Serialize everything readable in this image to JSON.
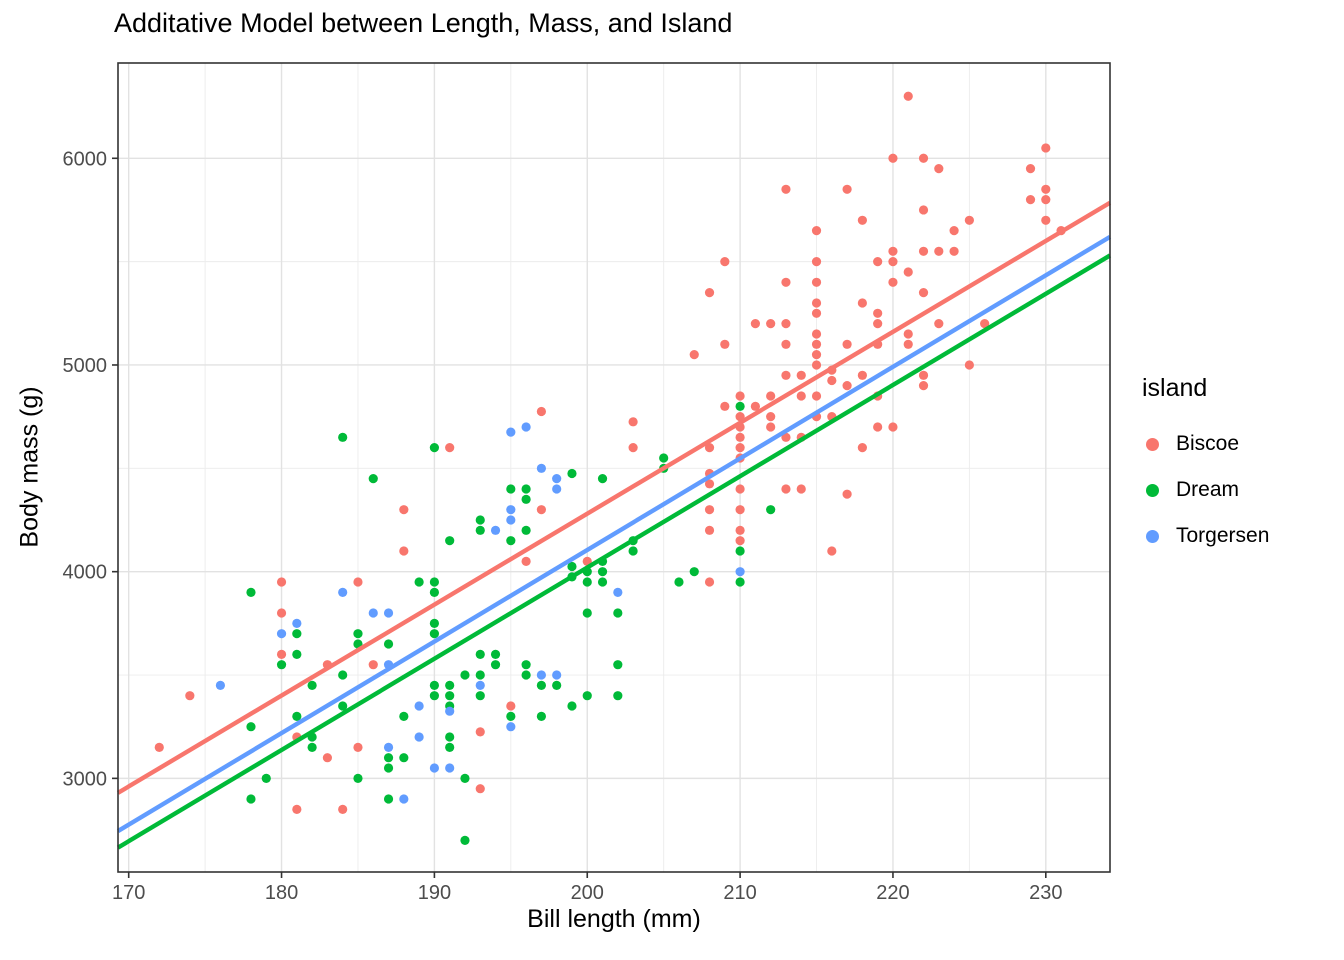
{
  "title": "Additative Model between Length, Mass, and Island",
  "legend": {
    "title": "island",
    "entries": [
      {
        "label": "Biscoe",
        "color": "#F8766D"
      },
      {
        "label": "Dream",
        "color": "#00BA38"
      },
      {
        "label": "Torgersen",
        "color": "#619CFF"
      }
    ]
  },
  "chart_data": {
    "type": "scatter",
    "title": "Additative Model between Length, Mass, and Island",
    "xlabel": "Bill length (mm)",
    "ylabel": "Body mass (g)",
    "xlim": [
      169.3,
      234.2
    ],
    "ylim": [
      2547,
      6461
    ],
    "x_ticks": [
      170,
      180,
      190,
      200,
      210,
      220,
      230
    ],
    "x_minor_ticks": [
      175,
      185,
      195,
      205,
      215,
      225
    ],
    "y_ticks": [
      3000,
      4000,
      5000,
      6000
    ],
    "y_minor_ticks": [
      3500,
      4500,
      5500
    ],
    "grid": "major+minor",
    "legend_title": "island",
    "legend_position": "right",
    "point_radius_px": 4.6,
    "colors": {
      "major_grid": "#E2E2E2",
      "minor_grid": "#ECECEC",
      "panel_border": "#333333",
      "tick": "#333333",
      "tick_label": "#4d4d4d"
    },
    "series": [
      {
        "name": "Biscoe",
        "color": "#F8766D",
        "points": [
          [
            172,
            3150
          ],
          [
            174,
            3400
          ],
          [
            180,
            3950
          ],
          [
            180,
            3800
          ],
          [
            180,
            3600
          ],
          [
            181,
            3200
          ],
          [
            181,
            2850
          ],
          [
            183,
            3550
          ],
          [
            183,
            3100
          ],
          [
            184,
            2850
          ],
          [
            185,
            3950
          ],
          [
            185,
            3150
          ],
          [
            186,
            3550
          ],
          [
            188,
            4300
          ],
          [
            188,
            4100
          ],
          [
            191,
            4600
          ],
          [
            193,
            3225
          ],
          [
            193,
            2950
          ],
          [
            195,
            3350
          ],
          [
            196,
            4050
          ],
          [
            197,
            4775
          ],
          [
            197,
            4300
          ],
          [
            200,
            4050
          ],
          [
            203,
            4725
          ],
          [
            203,
            4600
          ],
          [
            207,
            5050
          ],
          [
            208,
            5350
          ],
          [
            208,
            4600
          ],
          [
            208,
            4475
          ],
          [
            208,
            4425
          ],
          [
            208,
            4300
          ],
          [
            208,
            4200
          ],
          [
            208,
            3950
          ],
          [
            209,
            5500
          ],
          [
            209,
            5100
          ],
          [
            209,
            4800
          ],
          [
            210,
            4850
          ],
          [
            210,
            4750
          ],
          [
            210,
            4700
          ],
          [
            210,
            4650
          ],
          [
            210,
            4600
          ],
          [
            210,
            4550
          ],
          [
            210,
            4400
          ],
          [
            210,
            4300
          ],
          [
            210,
            4200
          ],
          [
            210,
            4150
          ],
          [
            211,
            5200
          ],
          [
            211,
            4800
          ],
          [
            212,
            5200
          ],
          [
            212,
            4850
          ],
          [
            212,
            4750
          ],
          [
            212,
            4700
          ],
          [
            213,
            5850
          ],
          [
            213,
            5400
          ],
          [
            213,
            5200
          ],
          [
            213,
            5100
          ],
          [
            213,
            4950
          ],
          [
            213,
            4650
          ],
          [
            213,
            4400
          ],
          [
            214,
            4950
          ],
          [
            214,
            4850
          ],
          [
            214,
            4650
          ],
          [
            214,
            4400
          ],
          [
            215,
            5650
          ],
          [
            215,
            5500
          ],
          [
            215,
            5400
          ],
          [
            215,
            5300
          ],
          [
            215,
            5250
          ],
          [
            215,
            5150
          ],
          [
            215,
            5100
          ],
          [
            215,
            5050
          ],
          [
            215,
            5000
          ],
          [
            215,
            4850
          ],
          [
            215,
            4750
          ],
          [
            216,
            4975
          ],
          [
            216,
            4925
          ],
          [
            216,
            4750
          ],
          [
            216,
            4100
          ],
          [
            217,
            5850
          ],
          [
            217,
            5100
          ],
          [
            217,
            4900
          ],
          [
            217,
            4375
          ],
          [
            218,
            5700
          ],
          [
            218,
            5300
          ],
          [
            218,
            4950
          ],
          [
            218,
            4600
          ],
          [
            219,
            5500
          ],
          [
            219,
            5250
          ],
          [
            219,
            5200
          ],
          [
            219,
            5100
          ],
          [
            219,
            4850
          ],
          [
            219,
            4700
          ],
          [
            220,
            6000
          ],
          [
            220,
            5550
          ],
          [
            220,
            5500
          ],
          [
            220,
            5400
          ],
          [
            220,
            4700
          ],
          [
            221,
            6300
          ],
          [
            221,
            5450
          ],
          [
            221,
            5150
          ],
          [
            221,
            5100
          ],
          [
            222,
            6000
          ],
          [
            222,
            5750
          ],
          [
            222,
            5550
          ],
          [
            222,
            5350
          ],
          [
            222,
            4950
          ],
          [
            222,
            4900
          ],
          [
            223,
            5950
          ],
          [
            223,
            5550
          ],
          [
            223,
            5200
          ],
          [
            224,
            5650
          ],
          [
            224,
            5550
          ],
          [
            225,
            5700
          ],
          [
            225,
            5000
          ],
          [
            226,
            5200
          ],
          [
            229,
            5950
          ],
          [
            229,
            5800
          ],
          [
            230,
            6050
          ],
          [
            230,
            5850
          ],
          [
            230,
            5800
          ],
          [
            230,
            5700
          ],
          [
            231,
            5650
          ]
        ]
      },
      {
        "name": "Dream",
        "color": "#00BA38",
        "points": [
          [
            178,
            3900
          ],
          [
            178,
            3250
          ],
          [
            178,
            2900
          ],
          [
            179,
            3000
          ],
          [
            180,
            3550
          ],
          [
            181,
            3700
          ],
          [
            181,
            3600
          ],
          [
            181,
            3300
          ],
          [
            182,
            3450
          ],
          [
            182,
            3200
          ],
          [
            182,
            3150
          ],
          [
            184,
            4650
          ],
          [
            184,
            3500
          ],
          [
            184,
            3350
          ],
          [
            185,
            3700
          ],
          [
            185,
            3650
          ],
          [
            185,
            3000
          ],
          [
            186,
            4450
          ],
          [
            187,
            3650
          ],
          [
            187,
            3100
          ],
          [
            187,
            3050
          ],
          [
            187,
            2900
          ],
          [
            188,
            3300
          ],
          [
            188,
            3100
          ],
          [
            189,
            3950
          ],
          [
            190,
            4600
          ],
          [
            190,
            3950
          ],
          [
            190,
            3900
          ],
          [
            190,
            3750
          ],
          [
            190,
            3700
          ],
          [
            190,
            3450
          ],
          [
            190,
            3400
          ],
          [
            191,
            4150
          ],
          [
            191,
            3450
          ],
          [
            191,
            3400
          ],
          [
            191,
            3350
          ],
          [
            191,
            3200
          ],
          [
            191,
            3150
          ],
          [
            192,
            3500
          ],
          [
            192,
            3000
          ],
          [
            192,
            2700
          ],
          [
            193,
            4250
          ],
          [
            193,
            4200
          ],
          [
            193,
            3600
          ],
          [
            193,
            3500
          ],
          [
            193,
            3400
          ],
          [
            194,
            3600
          ],
          [
            194,
            3550
          ],
          [
            195,
            4400
          ],
          [
            195,
            4150
          ],
          [
            195,
            3300
          ],
          [
            196,
            4400
          ],
          [
            196,
            4350
          ],
          [
            196,
            4200
          ],
          [
            196,
            3550
          ],
          [
            196,
            3500
          ],
          [
            197,
            3450
          ],
          [
            197,
            3300
          ],
          [
            198,
            3450
          ],
          [
            199,
            4475
          ],
          [
            199,
            4025
          ],
          [
            199,
            3975
          ],
          [
            199,
            3350
          ],
          [
            200,
            4000
          ],
          [
            200,
            3950
          ],
          [
            200,
            3800
          ],
          [
            200,
            3400
          ],
          [
            201,
            4450
          ],
          [
            201,
            4050
          ],
          [
            201,
            4000
          ],
          [
            201,
            3950
          ],
          [
            202,
            3800
          ],
          [
            202,
            3550
          ],
          [
            202,
            3400
          ],
          [
            203,
            4150
          ],
          [
            203,
            4100
          ],
          [
            205,
            4550
          ],
          [
            205,
            4500
          ],
          [
            206,
            3950
          ],
          [
            207,
            4000
          ],
          [
            210,
            4800
          ],
          [
            210,
            4100
          ],
          [
            210,
            3950
          ],
          [
            212,
            4300
          ]
        ]
      },
      {
        "name": "Torgersen",
        "color": "#619CFF",
        "points": [
          [
            176,
            3450
          ],
          [
            180,
            3700
          ],
          [
            181,
            3750
          ],
          [
            184,
            3900
          ],
          [
            186,
            3800
          ],
          [
            187,
            3800
          ],
          [
            187,
            3550
          ],
          [
            187,
            3150
          ],
          [
            188,
            2900
          ],
          [
            189,
            3350
          ],
          [
            189,
            3200
          ],
          [
            190,
            3050
          ],
          [
            191,
            3325
          ],
          [
            191,
            3050
          ],
          [
            193,
            3450
          ],
          [
            194,
            4200
          ],
          [
            195,
            4675
          ],
          [
            195,
            4300
          ],
          [
            195,
            4250
          ],
          [
            195,
            3250
          ],
          [
            196,
            4700
          ],
          [
            197,
            4500
          ],
          [
            197,
            3500
          ],
          [
            198,
            4450
          ],
          [
            198,
            4400
          ],
          [
            198,
            3500
          ],
          [
            202,
            3900
          ],
          [
            210,
            4000
          ]
        ]
      }
    ],
    "trend_lines": [
      {
        "name": "Biscoe",
        "color": "#F8766D",
        "x1": 169.3,
        "y1": 2930,
        "x2": 234.2,
        "y2": 5785
      },
      {
        "name": "Torgersen",
        "color": "#619CFF",
        "x1": 169.3,
        "y1": 2745,
        "x2": 234.2,
        "y2": 5620
      },
      {
        "name": "Dream",
        "color": "#00BA38",
        "x1": 169.3,
        "y1": 2665,
        "x2": 234.2,
        "y2": 5530
      }
    ]
  }
}
